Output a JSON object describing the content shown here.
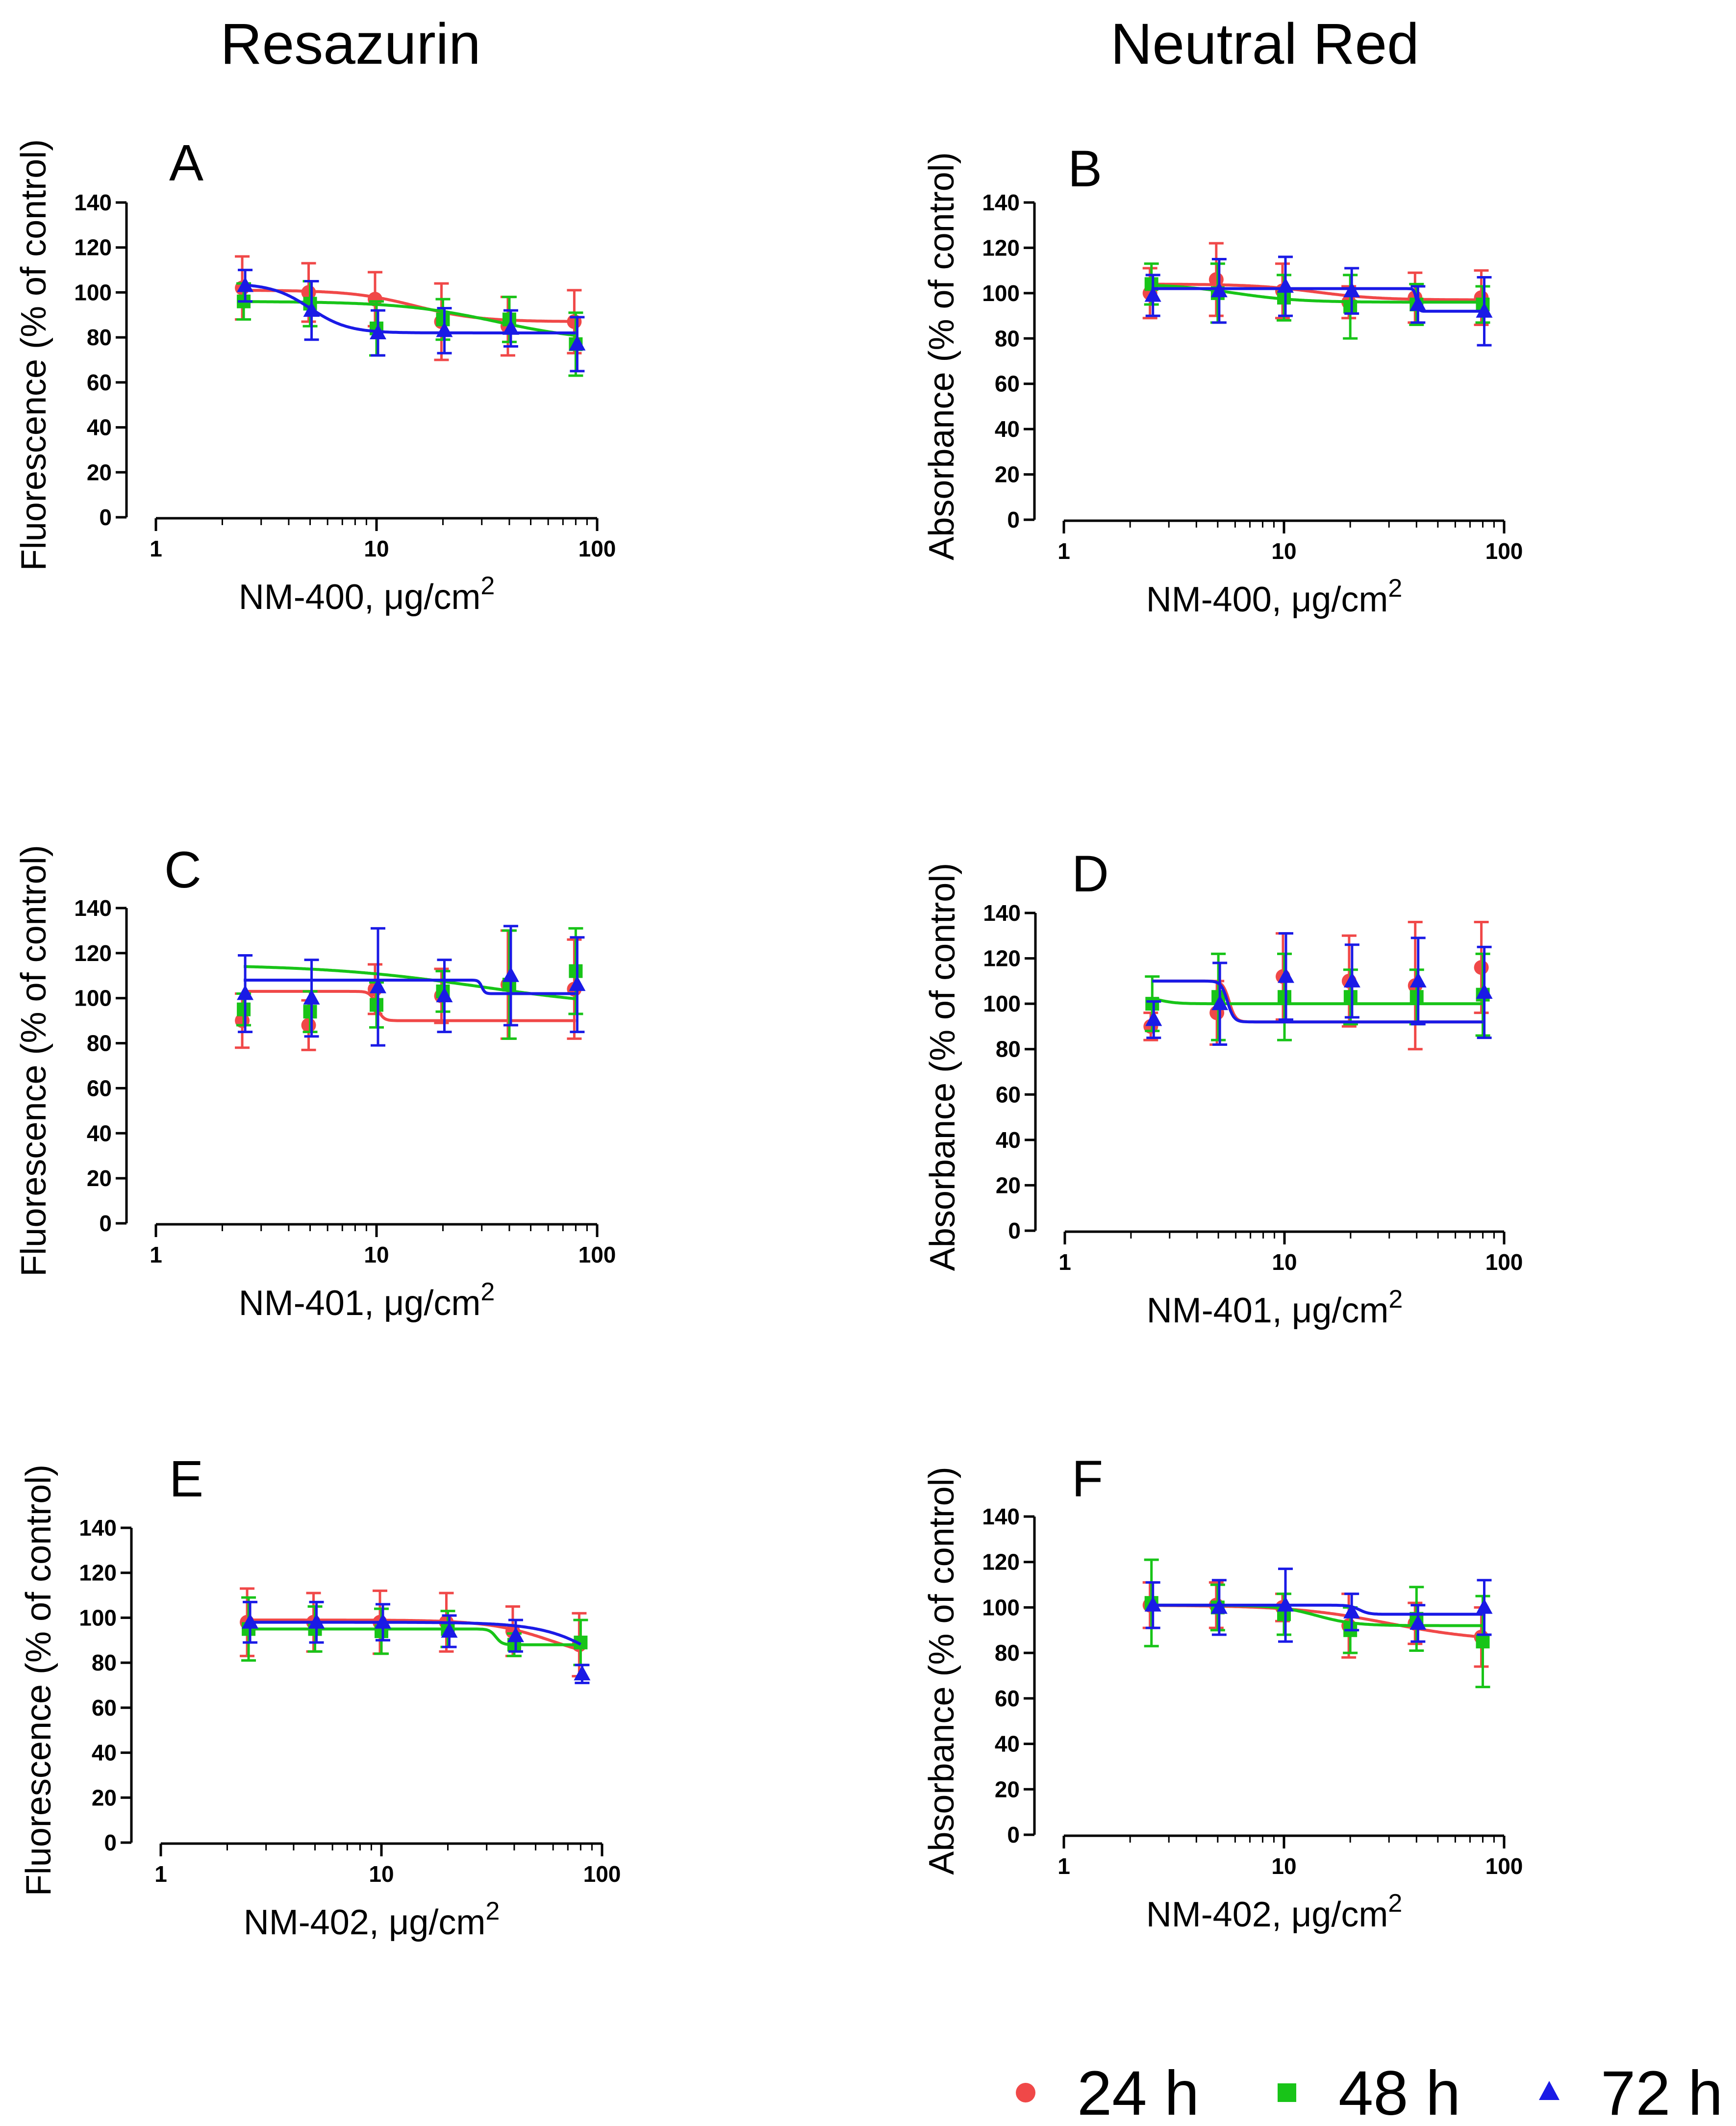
{
  "column_titles": [
    "Resazurin",
    "Neutral Red"
  ],
  "legend": [
    {
      "label": "24 h",
      "marker": "circle",
      "color": "#f04848"
    },
    {
      "label": "48 h",
      "marker": "square",
      "color": "#18c418"
    },
    {
      "label": "72 h",
      "marker": "triangle",
      "color": "#1a1ae6"
    }
  ],
  "chart_data": [
    {
      "panel": "A",
      "type": "line",
      "xlabel": "NM-400, μg/cm",
      "xlabel_sup": "2",
      "ylabel": "Fluorescence (% of control)",
      "xscale": "log",
      "xlim": [
        1,
        100
      ],
      "xticks": [
        "1",
        "10",
        "100"
      ],
      "ylim": [
        0,
        140
      ],
      "yticks": [
        "0",
        "20",
        "40",
        "60",
        "80",
        "100",
        "120",
        "140"
      ],
      "x": [
        2.5,
        5,
        10,
        20,
        40,
        80
      ],
      "series": [
        {
          "name": "24 h",
          "values": [
            102,
            100,
            97,
            87,
            85,
            87
          ],
          "err": [
            14,
            13,
            12,
            17,
            13,
            14
          ],
          "fit": {
            "top": 101,
            "bottom": 87,
            "ec50": 15,
            "hill": 3
          }
        },
        {
          "name": "48 h",
          "values": [
            96,
            95,
            84,
            88,
            88,
            77
          ],
          "err": [
            8,
            10,
            12,
            9,
            10,
            14
          ],
          "fit": {
            "top": 96,
            "bottom": 78,
            "ec50": 35,
            "hill": 2
          }
        },
        {
          "name": "72 h",
          "values": [
            103,
            92,
            82,
            83,
            84,
            77
          ],
          "err": [
            7,
            13,
            10,
            10,
            8,
            12
          ],
          "fit": {
            "top": 104,
            "bottom": 82,
            "ec50": 5,
            "hill": 5
          }
        }
      ]
    },
    {
      "panel": "B",
      "type": "line",
      "xlabel": "NM-400, μg/cm",
      "xlabel_sup": "2",
      "ylabel": "Absorbance (% of control)",
      "xscale": "log",
      "xlim": [
        1,
        100
      ],
      "xticks": [
        "1",
        "10",
        "100"
      ],
      "ylim": [
        0,
        140
      ],
      "yticks": [
        "0",
        "20",
        "40",
        "60",
        "80",
        "100",
        "120",
        "140"
      ],
      "x": [
        2.5,
        5,
        10,
        20,
        40,
        80
      ],
      "series": [
        {
          "name": "24 h",
          "values": [
            100,
            106,
            101,
            96,
            98,
            98
          ],
          "err": [
            11,
            16,
            12,
            7,
            11,
            12
          ],
          "fit": {
            "top": 104,
            "bottom": 97,
            "ec50": 14,
            "hill": 3
          }
        },
        {
          "name": "48 h",
          "values": [
            104,
            100,
            98,
            94,
            95,
            95
          ],
          "err": [
            9,
            13,
            10,
            14,
            9,
            8
          ],
          "fit": {
            "top": 104,
            "bottom": 96,
            "ec50": 6,
            "hill": 3
          }
        },
        {
          "name": "72 h",
          "values": [
            99,
            101,
            103,
            101,
            95,
            92
          ],
          "err": [
            9,
            14,
            13,
            10,
            8,
            15
          ],
          "fit": {
            "top": 102,
            "bottom": 92,
            "ec50": 40,
            "hill": 80
          }
        }
      ]
    },
    {
      "panel": "C",
      "type": "line",
      "xlabel": "NM-401, μg/cm",
      "xlabel_sup": "2",
      "ylabel": "Fluorescence (% of control)",
      "xscale": "log",
      "xlim": [
        1,
        100
      ],
      "xticks": [
        "1",
        "10",
        "100"
      ],
      "ylim": [
        0,
        140
      ],
      "yticks": [
        "0",
        "20",
        "40",
        "60",
        "80",
        "100",
        "120",
        "140"
      ],
      "x": [
        2.5,
        5,
        10,
        20,
        40,
        80
      ],
      "series": [
        {
          "name": "24 h",
          "values": [
            90,
            88,
            104,
            101,
            106,
            104
          ],
          "err": [
            12,
            11,
            11,
            12,
            24,
            22
          ],
          "fit": {
            "top": 103,
            "bottom": 90,
            "ec50": 10,
            "hill": 30
          }
        },
        {
          "name": "48 h",
          "values": [
            95,
            94,
            97,
            103,
            106,
            112
          ],
          "err": [
            7,
            9,
            10,
            9,
            24,
            19
          ],
          "fit": {
            "top": 115,
            "bottom": 95,
            "ec50": 30,
            "hill": 1.2
          }
        },
        {
          "name": "72 h",
          "values": [
            102,
            100,
            105,
            101,
            110,
            106
          ],
          "err": [
            17,
            17,
            26,
            16,
            22,
            21
          ],
          "fit": {
            "top": 108,
            "bottom": 102,
            "ec50": 30,
            "hill": 60
          }
        }
      ]
    },
    {
      "panel": "D",
      "type": "line",
      "xlabel": "NM-401, μg/cm",
      "xlabel_sup": "2",
      "ylabel": "Absorbance (% of control)",
      "xscale": "log",
      "xlim": [
        1,
        100
      ],
      "xticks": [
        "1",
        "10",
        "100"
      ],
      "ylim": [
        0,
        140
      ],
      "yticks": [
        "0",
        "20",
        "40",
        "60",
        "80",
        "100",
        "120",
        "140"
      ],
      "x": [
        2.5,
        5,
        10,
        20,
        40,
        80
      ],
      "series": [
        {
          "name": "24 h",
          "values": [
            90,
            96,
            112,
            110,
            108,
            116
          ],
          "err": [
            6,
            14,
            19,
            20,
            28,
            20
          ],
          "fit": {
            "top": 110,
            "bottom": 92,
            "ec50": 5.6,
            "hill": 30
          }
        },
        {
          "name": "48 h",
          "values": [
            100,
            103,
            103,
            103,
            103,
            104
          ],
          "err": [
            12,
            19,
            19,
            12,
            12,
            18
          ],
          "fit": {
            "top": 104,
            "bottom": 100,
            "ec50": 2.6,
            "hill": 10
          }
        },
        {
          "name": "72 h",
          "values": [
            93,
            100,
            112,
            110,
            110,
            105
          ],
          "err": [
            8,
            18,
            19,
            16,
            19,
            20
          ],
          "fit": {
            "top": 110,
            "bottom": 92,
            "ec50": 5.5,
            "hill": 30
          }
        }
      ]
    },
    {
      "panel": "E",
      "type": "line",
      "xlabel": "NM-402, μg/cm",
      "xlabel_sup": "2",
      "ylabel": "Fluorescence (% of control)",
      "xscale": "log",
      "xlim": [
        1,
        100
      ],
      "xticks": [
        "1",
        "10",
        "100"
      ],
      "ylim": [
        0,
        140
      ],
      "yticks": [
        "0",
        "20",
        "40",
        "60",
        "80",
        "100",
        "120",
        "140"
      ],
      "x": [
        2.5,
        5,
        10,
        20,
        40,
        80
      ],
      "series": [
        {
          "name": "24 h",
          "values": [
            98,
            98,
            98,
            98,
            94,
            88
          ],
          "err": [
            15,
            13,
            14,
            13,
            11,
            14
          ],
          "fit": {
            "top": 99,
            "bottom": 80,
            "ec50": 60,
            "hill": 3
          }
        },
        {
          "name": "48 h",
          "values": [
            95,
            95,
            94,
            95,
            88,
            89
          ],
          "err": [
            14,
            10,
            10,
            8,
            5,
            10
          ],
          "fit": {
            "top": 95,
            "bottom": 88,
            "ec50": 33,
            "hill": 30
          }
        },
        {
          "name": "72 h",
          "values": [
            98,
            98,
            98,
            94,
            92,
            75
          ],
          "err": [
            9,
            9,
            8,
            7,
            7,
            4
          ],
          "fit": {
            "top": 98,
            "bottom": 55,
            "ec50": 120,
            "hill": 3
          }
        }
      ]
    },
    {
      "panel": "F",
      "type": "line",
      "xlabel": "NM-402, μg/cm",
      "xlabel_sup": "2",
      "ylabel": "Absorbance (% of control)",
      "xscale": "log",
      "xlim": [
        1,
        100
      ],
      "xticks": [
        "1",
        "10",
        "100"
      ],
      "ylim": [
        0,
        140
      ],
      "yticks": [
        "0",
        "20",
        "40",
        "60",
        "80",
        "100",
        "120",
        "140"
      ],
      "x": [
        2.5,
        5,
        10,
        20,
        40,
        80
      ],
      "series": [
        {
          "name": "24 h",
          "values": [
            101,
            101,
            100,
            92,
            93,
            87
          ],
          "err": [
            10,
            10,
            6,
            14,
            9,
            13
          ],
          "fit": {
            "top": 101,
            "bottom": 85,
            "ec50": 30,
            "hill": 2
          }
        },
        {
          "name": "48 h",
          "values": [
            102,
            100,
            97,
            90,
            95,
            85
          ],
          "err": [
            19,
            10,
            9,
            10,
            14,
            20
          ],
          "fit": {
            "top": 101,
            "bottom": 92,
            "ec50": 14,
            "hill": 5
          }
        },
        {
          "name": "72 h",
          "values": [
            101,
            100,
            101,
            98,
            93,
            100
          ],
          "err": [
            10,
            12,
            16,
            8,
            8,
            12
          ],
          "fit": {
            "top": 101,
            "bottom": 97,
            "ec50": 22,
            "hill": 20
          }
        }
      ]
    }
  ]
}
